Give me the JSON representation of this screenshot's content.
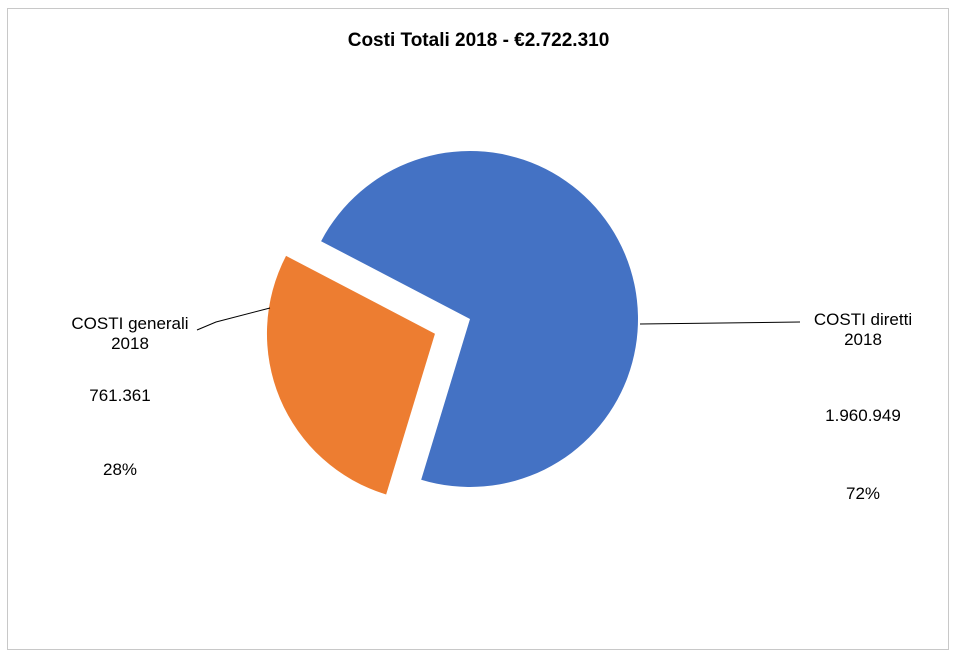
{
  "chart_data": {
    "type": "pie",
    "title": "Costi Totali 2018 -  €2.722.310",
    "total": 2722310,
    "slices": [
      {
        "name": "COSTI diretti 2018",
        "name_line1": "COSTI diretti",
        "name_line2": "2018",
        "value": 1960949,
        "value_label": "1.960.949",
        "percent_label": "72%",
        "color": "#4472c4",
        "exploded": false
      },
      {
        "name": "COSTI generali 2018",
        "name_line1": "COSTI generali",
        "name_line2": "2018",
        "value": 761361,
        "value_label": "761.361",
        "percent_label": "28%",
        "color": "#ed7d31",
        "exploded": true
      }
    ],
    "legend": "none"
  }
}
